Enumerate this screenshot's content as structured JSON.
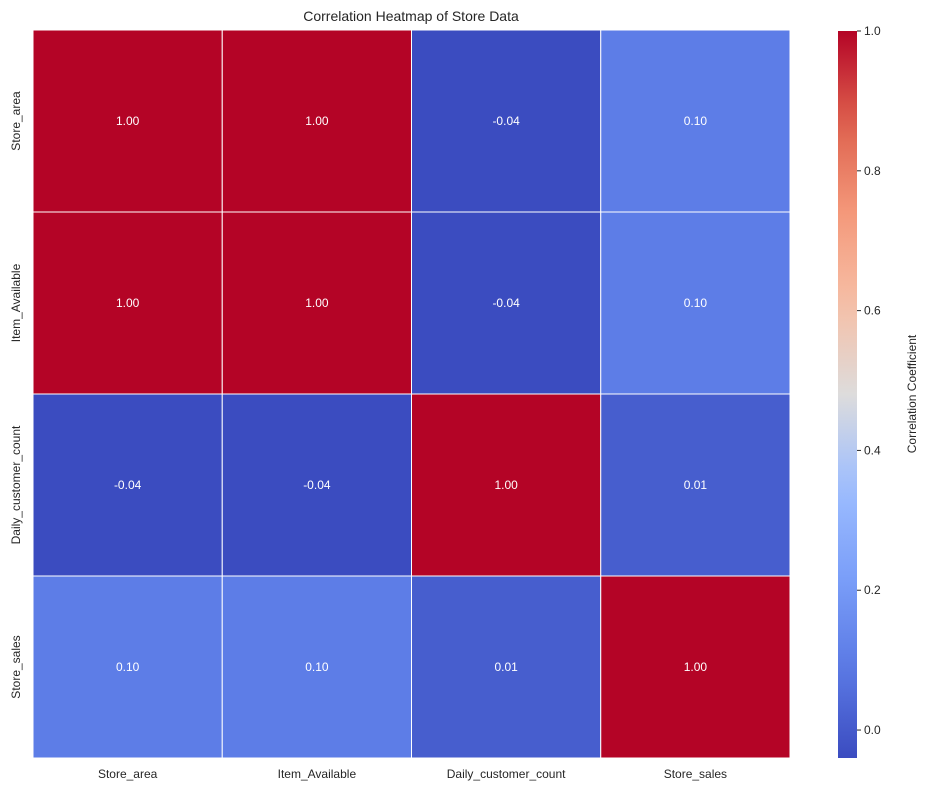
{
  "chart_data": {
    "type": "heatmap",
    "title": "Correlation Heatmap of Store Data",
    "x_labels": [
      "Store_area",
      "Item_Available",
      "Daily_customer_count",
      "Store_sales"
    ],
    "y_labels": [
      "Store_area",
      "Item_Available",
      "Daily_customer_count",
      "Store_sales"
    ],
    "values": [
      [
        1.0,
        1.0,
        -0.04,
        0.1
      ],
      [
        1.0,
        1.0,
        -0.04,
        0.1
      ],
      [
        -0.04,
        -0.04,
        1.0,
        0.01
      ],
      [
        0.1,
        0.1,
        0.01,
        1.0
      ]
    ],
    "annotation_format": "0.00",
    "colormap": "coolwarm",
    "color_range": [
      -0.04,
      1.0
    ],
    "colorbar": {
      "label": "Correlation Coefficient",
      "ticks": [
        "0.0",
        "0.2",
        "0.4",
        "0.6",
        "0.8",
        "1.0"
      ],
      "tick_values": [
        0.0,
        0.2,
        0.4,
        0.6,
        0.8,
        1.0
      ]
    },
    "grid_line_color": "#ffffff"
  }
}
